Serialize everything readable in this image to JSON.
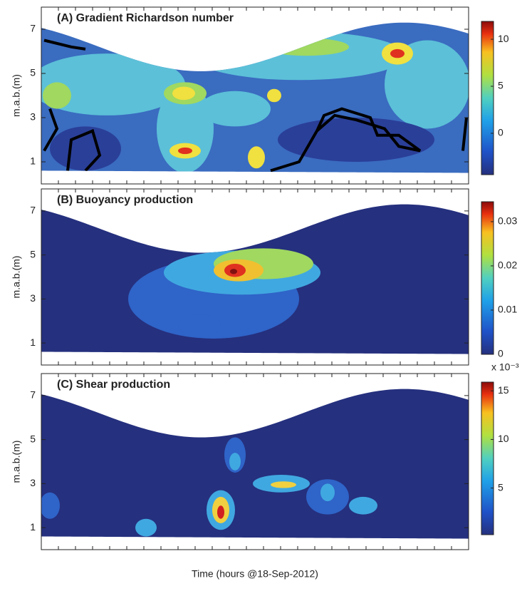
{
  "chart_data": {
    "type": "contour",
    "x_label": "Time (hours @18-Sep-2012)",
    "panels": [
      {
        "title": "(A) Gradient Richardson number",
        "y_label": "m.a.b.(m)",
        "ylim": [
          0,
          8
        ],
        "yticks": [
          1,
          3,
          5,
          7
        ],
        "colorbar": {
          "clim": [
            -4.4,
            11.9
          ],
          "ticks": [
            0,
            5,
            10
          ]
        }
      },
      {
        "title": "(B) Buoyancy production",
        "y_label": "m.a.b.(m)",
        "ylim": [
          0,
          8
        ],
        "yticks": [
          1,
          3,
          5,
          7
        ],
        "colorbar": {
          "clim": [
            0,
            0.0345
          ],
          "ticks": [
            0,
            0.01,
            0.02,
            0.03
          ]
        }
      },
      {
        "title": "(C) Shear production",
        "y_label": "m.a.b.(m)",
        "ylim": [
          0,
          8
        ],
        "yticks": [
          1,
          3,
          5,
          7
        ],
        "colorbar": {
          "clim": [
            0.2,
            15.9
          ],
          "ticks": [
            5,
            10,
            15
          ],
          "label": "x 10⁻³"
        }
      }
    ]
  }
}
